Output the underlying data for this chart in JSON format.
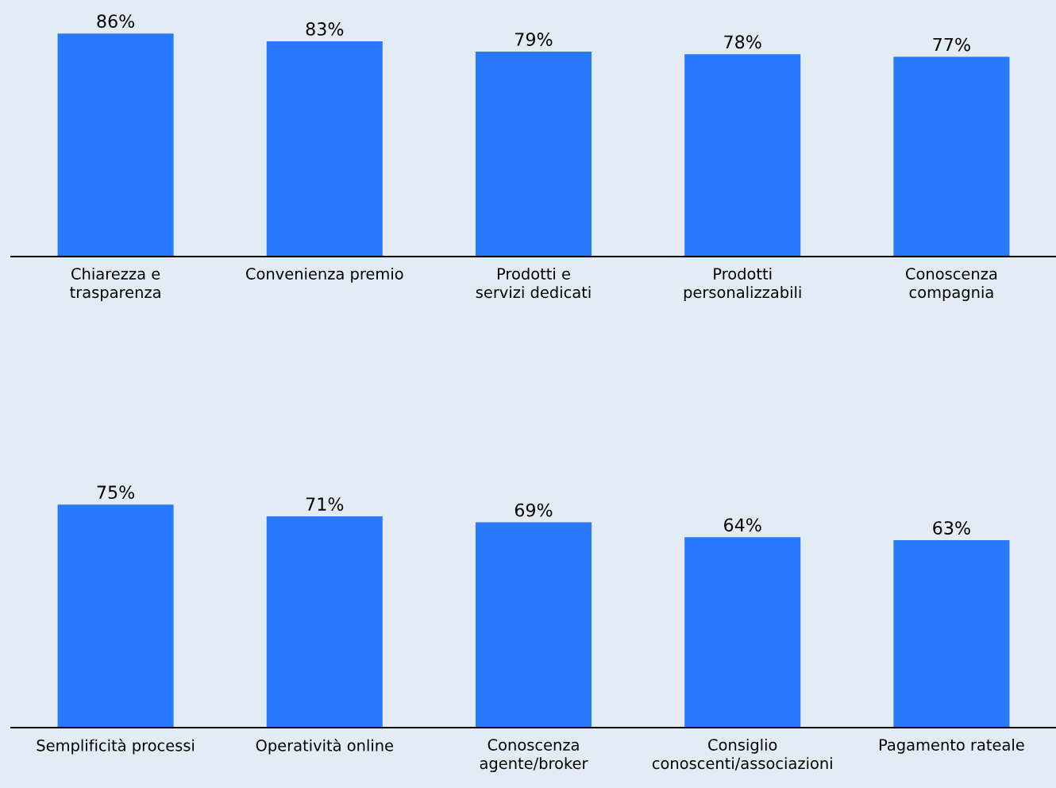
{
  "chart_data": [
    {
      "type": "bar",
      "categories": [
        "Chiarezza e\ntrasparenza",
        "Convenienza premio",
        "Prodotti e\nservizi dedicati",
        "Prodotti\npersonalizzabili",
        "Conoscenza\ncompagnia"
      ],
      "values": [
        86,
        83,
        79,
        78,
        77
      ],
      "color": "#2979ff",
      "data_labels": true,
      "value_labels": [
        "86%",
        "83%",
        "79%",
        "78%",
        "77%"
      ],
      "grid": false,
      "legend": false
    },
    {
      "type": "bar",
      "categories": [
        "Semplificità processi",
        "Operatività online",
        "Conoscenza\nagente/broker",
        "Consiglio\nconoscenti/associazioni",
        "Pagamento rateale"
      ],
      "values": [
        75,
        71,
        69,
        64,
        63
      ],
      "color": "#2979ff",
      "data_labels": true,
      "value_labels": [
        "75%",
        "71%",
        "69%",
        "64%",
        "63%"
      ],
      "grid": false,
      "legend": false
    }
  ]
}
